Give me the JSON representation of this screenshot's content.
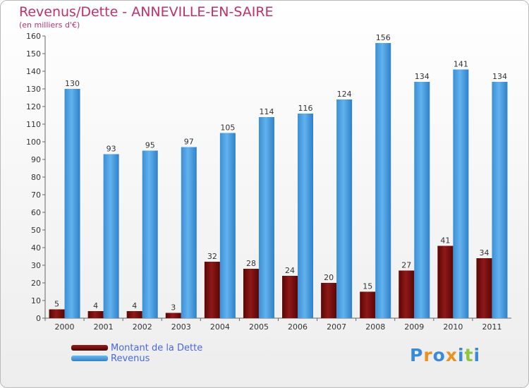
{
  "header": {
    "title": "Revenus/Dette - ANNEVILLE-EN-SAIRE",
    "subtitle": "(en milliers d'€)"
  },
  "legend": {
    "items": [
      {
        "label": "Montant de la Dette",
        "color": "#7a0c0c"
      },
      {
        "label": "Revenus",
        "color": "#4aa3e6"
      }
    ]
  },
  "brand": {
    "logo_text": "Proxiti",
    "letter_colors": [
      "#3a8ad8",
      "#e8931e",
      "#3a8ad8",
      "#e8931e",
      "#3a8ad8",
      "#8dc63f",
      "#3a8ad8"
    ]
  },
  "chart_data": {
    "type": "bar",
    "title": "Revenus/Dette - ANNEVILLE-EN-SAIRE",
    "ylabel": "(en milliers d'€)",
    "xlabel": "",
    "categories": [
      "2000",
      "2001",
      "2002",
      "2003",
      "2004",
      "2005",
      "2006",
      "2007",
      "2008",
      "2009",
      "2010",
      "2011"
    ],
    "series": [
      {
        "name": "Montant de la Dette",
        "color": "#7a0c0c",
        "values": [
          5,
          4,
          4,
          3,
          32,
          28,
          24,
          20,
          15,
          27,
          41,
          34
        ]
      },
      {
        "name": "Revenus",
        "color": "#4aa3e6",
        "values": [
          130,
          93,
          95,
          97,
          105,
          114,
          116,
          124,
          156,
          134,
          141,
          134
        ]
      }
    ],
    "ylim": [
      0,
      160
    ],
    "yticks": [
      0,
      10,
      20,
      30,
      40,
      50,
      60,
      70,
      80,
      90,
      100,
      110,
      120,
      130,
      140,
      150,
      160
    ],
    "grid": false,
    "legend_position": "bottom-left"
  }
}
